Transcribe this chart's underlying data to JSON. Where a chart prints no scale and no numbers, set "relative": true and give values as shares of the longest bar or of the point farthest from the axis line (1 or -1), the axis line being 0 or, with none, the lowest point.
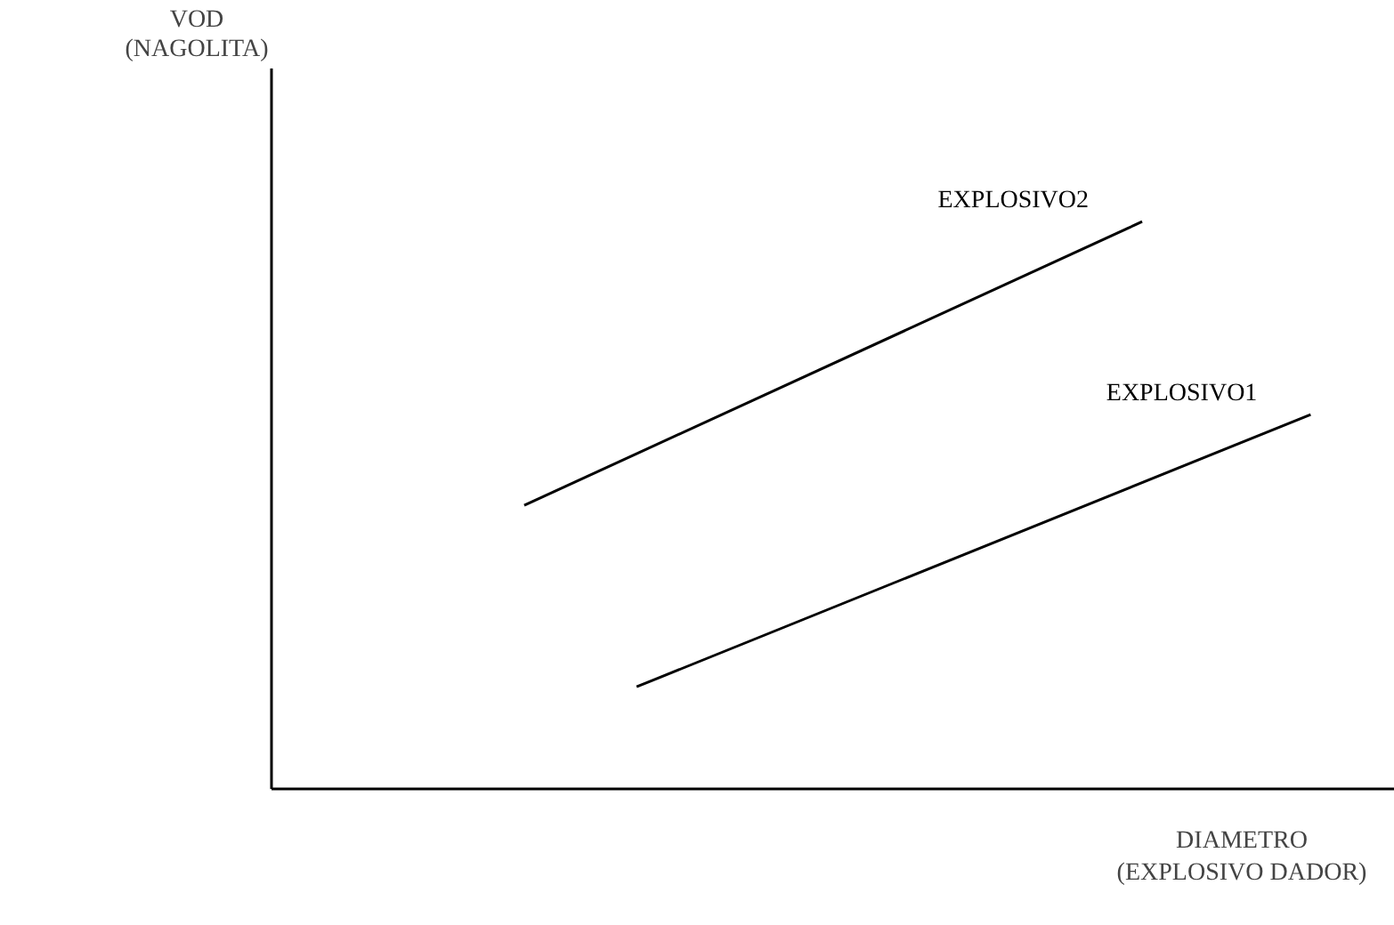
{
  "chart_data": {
    "type": "line",
    "relative": true,
    "xlabel": "DIAMETRO\n(EXPLOSIVO DADOR)",
    "annotations": [
      "VOD\n(NAGOLITA)"
    ],
    "categories": [
      null,
      null,
      null,
      null,
      null,
      null,
      null,
      null,
      null,
      null,
      null,
      null,
      null,
      null,
      null,
      null,
      null,
      null,
      null,
      null
    ],
    "marker": "none",
    "line_style": "solid",
    "series": [
      {
        "name": "EXPLOSIVO2",
        "color": "#000000",
        "values": [
          null,
          null,
          null,
          null,
          0.5,
          null,
          null,
          null,
          null,
          null,
          null,
          null,
          null,
          null,
          null,
          1.0,
          null,
          null,
          null,
          null
        ]
      },
      {
        "name": "EXPLOSIVO1",
        "color": "#000000",
        "values": [
          null,
          null,
          null,
          null,
          null,
          null,
          0.18,
          null,
          null,
          null,
          null,
          null,
          null,
          null,
          null,
          null,
          null,
          null,
          0.66,
          null
        ]
      }
    ]
  }
}
